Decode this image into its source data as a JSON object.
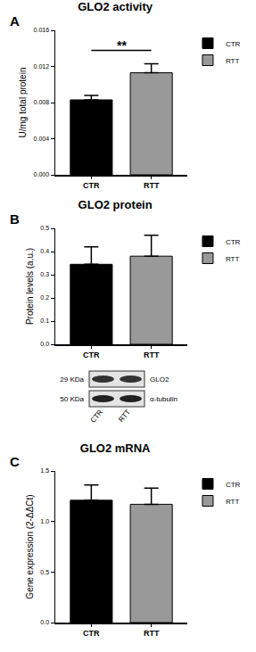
{
  "chart_data": [
    {
      "type": "bar",
      "panel": "A",
      "title": "GLO2 activity",
      "categories": [
        "CTR",
        "RTT"
      ],
      "series": [
        {
          "name": "CTR",
          "color": "#000000",
          "values": [
            0.0083,
            null
          ],
          "errors": [
            0.0005,
            null
          ]
        },
        {
          "name": "RTT",
          "color": "#999999",
          "values": [
            null,
            0.0113
          ],
          "errors": [
            null,
            0.001
          ]
        }
      ],
      "y_label": "U/mg total protein",
      "ylim": [
        0,
        0.016
      ],
      "yticks": [
        {
          "value": 0,
          "label": "0.000"
        },
        {
          "value": 0.004,
          "label": "0.004"
        },
        {
          "value": 0.008,
          "label": "0.008"
        },
        {
          "value": 0.012,
          "label": "0.012"
        },
        {
          "value": 0.016,
          "label": "0.016"
        }
      ],
      "annotations": [
        "**"
      ],
      "legend": "top right",
      "grid": false
    },
    {
      "type": "bar",
      "panel": "B",
      "title": "GLO2 protein",
      "categories": [
        "CTR",
        "RTT"
      ],
      "series": [
        {
          "name": "CTR",
          "color": "#000000",
          "values": [
            0.345,
            null
          ],
          "errors": [
            0.075,
            null
          ]
        },
        {
          "name": "RTT",
          "color": "#999999",
          "values": [
            null,
            0.38
          ],
          "errors": [
            null,
            0.09
          ]
        }
      ],
      "y_label": "Protein levels (a.u.)",
      "ylim": [
        0,
        0.5
      ],
      "yticks": [
        {
          "value": 0,
          "label": "0.0"
        },
        0.1,
        0.2,
        0.3,
        0.4,
        0.5
      ],
      "legend": "top right",
      "grid": false
    },
    {
      "type": "bar",
      "panel": "C",
      "title": "GLO2 mRNA",
      "categories": [
        "CTR",
        "RTT"
      ],
      "series": [
        {
          "name": "CTR",
          "color": "#000000",
          "values": [
            1.21,
            null
          ],
          "errors": [
            0.15,
            null
          ]
        },
        {
          "name": "RTT",
          "color": "#999999",
          "values": [
            null,
            1.17
          ],
          "errors": [
            null,
            0.16
          ]
        }
      ],
      "y_label": "Gene expression (2-ΔΔCt)",
      "ylim": [
        0,
        1.5
      ],
      "yticks": [
        {
          "value": 0,
          "label": "0.0"
        },
        0.5,
        {
          "value": 1,
          "label": "1.0"
        },
        1.5
      ],
      "legend": "top right",
      "grid": false
    }
  ],
  "blot": {
    "rows": [
      {
        "size": "29 KDa",
        "label": "GLO2"
      },
      {
        "size": "50 KDa",
        "label": "α-tubulin"
      }
    ],
    "lanes": [
      "CTR",
      "RTT"
    ]
  }
}
